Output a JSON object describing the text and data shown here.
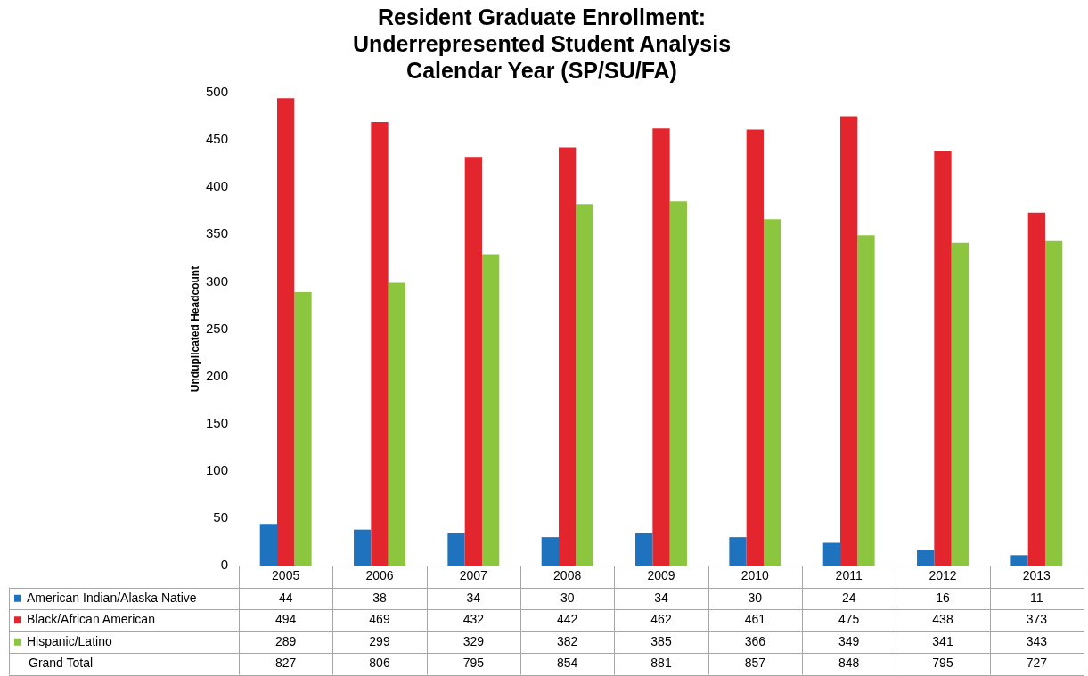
{
  "chart_data": {
    "type": "bar",
    "title": "Resident Graduate Enrollment:\nUnderrepresented Student Analysis\nCalendar Year (SP/SU/FA)",
    "ylabel": "Unduplicated Headcount",
    "categories": [
      "2005",
      "2006",
      "2007",
      "2008",
      "2009",
      "2010",
      "2011",
      "2012",
      "2013"
    ],
    "series": [
      {
        "name": "American Indian/Alaska Native",
        "color": "#1f73be",
        "values": [
          44,
          38,
          34,
          30,
          34,
          30,
          24,
          16,
          11
        ]
      },
      {
        "name": "Black/African American",
        "color": "#e3262d",
        "values": [
          494,
          469,
          432,
          442,
          462,
          461,
          475,
          438,
          373
        ]
      },
      {
        "name": "Hispanic/Latino",
        "color": "#8cc63f",
        "values": [
          289,
          299,
          329,
          382,
          385,
          366,
          349,
          341,
          343
        ]
      }
    ],
    "annotations": [
      "Grand Total",
      "827",
      "806",
      "795",
      "854",
      "881",
      "857",
      "848",
      "795",
      "727"
    ],
    "ylim": [
      0,
      500
    ],
    "yticks": [
      0,
      50,
      100,
      150,
      200,
      250,
      300,
      350,
      400,
      450,
      500
    ],
    "grid": false,
    "legend": "bottom",
    "data_labels": true
  }
}
